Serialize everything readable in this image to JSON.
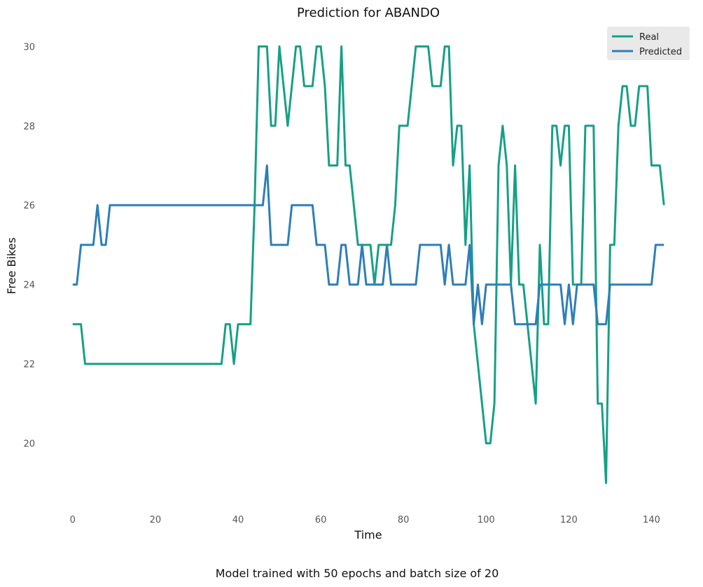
{
  "chart_data": {
    "type": "line",
    "title": "Prediction for ABANDO",
    "xlabel": "Time",
    "ylabel": "Free Bikes",
    "footer": "Model trained with 50 epochs and batch size of 20",
    "xlim": [
      -2,
      145
    ],
    "ylim": [
      18.3,
      30.5
    ],
    "xticks": [
      0,
      20,
      40,
      60,
      80,
      100,
      120,
      140
    ],
    "yticks": [
      20,
      22,
      24,
      26,
      28,
      30
    ],
    "grid": false,
    "legend_position": "top-right",
    "series": [
      {
        "name": "Real",
        "color": "#16a085",
        "values": [
          23,
          23,
          23,
          22,
          22,
          22,
          22,
          22,
          22,
          22,
          22,
          22,
          22,
          22,
          22,
          22,
          22,
          22,
          22,
          22,
          22,
          22,
          22,
          22,
          22,
          22,
          22,
          22,
          22,
          22,
          22,
          22,
          22,
          22,
          22,
          22,
          22,
          23,
          23,
          22,
          23,
          23,
          23,
          23,
          26,
          30,
          30,
          30,
          28,
          28,
          30,
          29,
          28,
          29,
          30,
          30,
          29,
          29,
          29,
          30,
          30,
          29,
          27,
          27,
          27,
          30,
          27,
          27,
          26,
          25,
          25,
          25,
          25,
          24,
          25,
          25,
          25,
          25,
          26,
          28,
          28,
          28,
          29,
          30,
          30,
          30,
          30,
          29,
          29,
          29,
          30,
          30,
          27,
          28,
          28,
          25,
          27,
          23,
          22,
          21,
          20,
          20,
          21,
          27,
          28,
          27,
          24,
          27,
          24,
          24,
          23,
          22,
          21,
          25,
          23,
          23,
          28,
          28,
          27,
          28,
          28,
          24,
          24,
          24,
          28,
          28,
          28,
          21,
          21,
          19,
          25,
          25,
          28,
          29,
          29,
          28,
          28,
          29,
          29,
          29,
          27,
          27,
          27,
          26
        ]
      },
      {
        "name": "Predicted",
        "color": "#2e7eb8",
        "values": [
          24,
          24,
          25,
          25,
          25,
          25,
          26,
          25,
          25,
          26,
          26,
          26,
          26,
          26,
          26,
          26,
          26,
          26,
          26,
          26,
          26,
          26,
          26,
          26,
          26,
          26,
          26,
          26,
          26,
          26,
          26,
          26,
          26,
          26,
          26,
          26,
          26,
          26,
          26,
          26,
          26,
          26,
          26,
          26,
          26,
          26,
          26,
          27,
          25,
          25,
          25,
          25,
          25,
          26,
          26,
          26,
          26,
          26,
          26,
          25,
          25,
          25,
          24,
          24,
          24,
          25,
          25,
          24,
          24,
          24,
          25,
          24,
          24,
          24,
          24,
          24,
          25,
          24,
          24,
          24,
          24,
          24,
          24,
          24,
          25,
          25,
          25,
          25,
          25,
          25,
          24,
          25,
          24,
          24,
          24,
          24,
          25,
          23,
          24,
          23,
          24,
          24,
          24,
          24,
          24,
          24,
          24,
          23,
          23,
          23,
          23,
          23,
          23,
          24,
          24,
          24,
          24,
          24,
          24,
          23,
          24,
          23,
          24,
          24,
          24,
          24,
          24,
          23,
          23,
          23,
          24,
          24,
          24,
          24,
          24,
          24,
          24,
          24,
          24,
          24,
          24,
          25,
          25,
          25
        ]
      }
    ]
  }
}
